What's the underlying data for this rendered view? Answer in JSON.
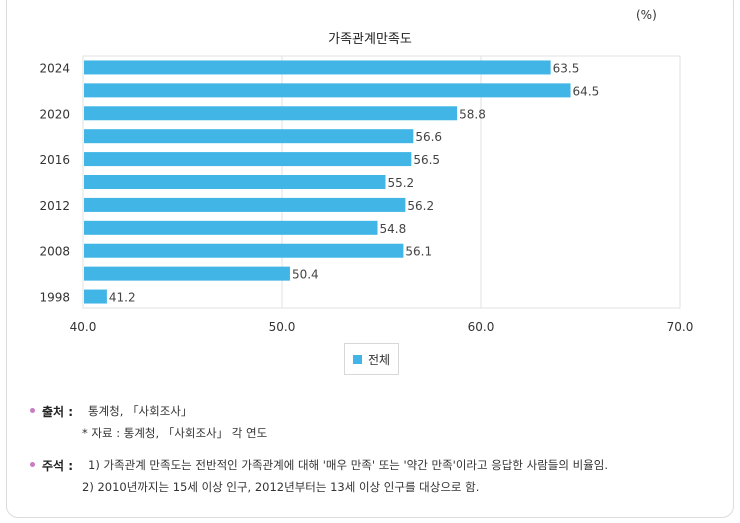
{
  "unit_label": "(%)",
  "chart_data": {
    "type": "bar",
    "orientation": "horizontal",
    "title": "가족관계만족도",
    "categories": [
      "2024",
      "",
      "2020",
      "",
      "2016",
      "",
      "2012",
      "",
      "2008",
      "",
      "1998"
    ],
    "series": [
      {
        "name": "전체",
        "values": [
          63.5,
          64.5,
          58.8,
          56.6,
          56.5,
          55.2,
          56.2,
          54.8,
          56.1,
          50.4,
          41.2
        ]
      }
    ],
    "xlim": [
      40,
      70
    ],
    "x_ticks": [
      "40.0",
      "50.0",
      "60.0",
      "70.0"
    ],
    "grid": true,
    "legend": "bottom-center",
    "bar_color": "#41b6e6"
  },
  "legend": {
    "label": "전체"
  },
  "notes": {
    "source_label": "출처 :",
    "source_text": "통계청, 「사회조사」",
    "source_sub": "* 자료 : 통계청, 「사회조사」 각 연도",
    "remark_label": "주석 :",
    "remark_text": "1) 가족관계 만족도는 전반적인 가족관계에 대해 '매우 만족' 또는 '약간 만족'이라고 응답한 사람들의 비율임.",
    "remark_sub": "2) 2010년까지는 15세 이상 인구, 2012년부터는 13세 이상 인구를 대상으로 함."
  }
}
